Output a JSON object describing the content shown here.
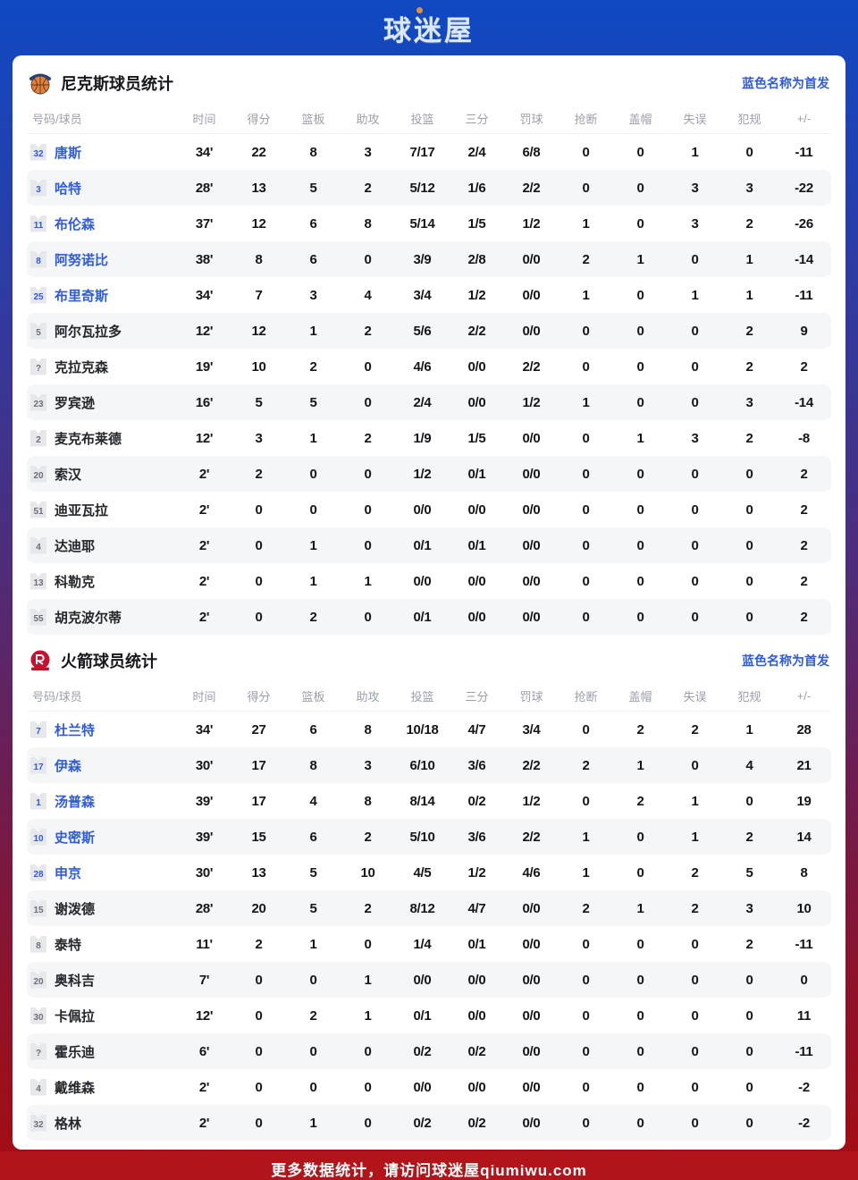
{
  "logo": {
    "text": "球迷屋"
  },
  "legend": "蓝色名称为首发",
  "columns": [
    "号码/球员",
    "时间",
    "得分",
    "篮板",
    "助攻",
    "投篮",
    "三分",
    "罚球",
    "抢断",
    "盖帽",
    "失误",
    "犯规",
    "+/-"
  ],
  "teams": [
    {
      "title": "尼克斯球员统计",
      "icon": "knicks-basketball",
      "players": [
        {
          "num": "32",
          "name": "唐斯",
          "starter": true,
          "stats": [
            "34'",
            "22",
            "8",
            "3",
            "7/17",
            "2/4",
            "6/8",
            "0",
            "0",
            "1",
            "0",
            "-11"
          ]
        },
        {
          "num": "3",
          "name": "哈特",
          "starter": true,
          "stats": [
            "28'",
            "13",
            "5",
            "2",
            "5/12",
            "1/6",
            "2/2",
            "0",
            "0",
            "3",
            "3",
            "-22"
          ]
        },
        {
          "num": "11",
          "name": "布伦森",
          "starter": true,
          "stats": [
            "37'",
            "12",
            "6",
            "8",
            "5/14",
            "1/5",
            "1/2",
            "1",
            "0",
            "3",
            "2",
            "-26"
          ]
        },
        {
          "num": "8",
          "name": "阿努诺比",
          "starter": true,
          "stats": [
            "38'",
            "8",
            "6",
            "0",
            "3/9",
            "2/8",
            "0/0",
            "2",
            "1",
            "0",
            "1",
            "-14"
          ]
        },
        {
          "num": "25",
          "name": "布里奇斯",
          "starter": true,
          "stats": [
            "34'",
            "7",
            "3",
            "4",
            "3/4",
            "1/2",
            "0/0",
            "1",
            "0",
            "1",
            "1",
            "-11"
          ]
        },
        {
          "num": "5",
          "name": "阿尔瓦拉多",
          "starter": false,
          "stats": [
            "12'",
            "12",
            "1",
            "2",
            "5/6",
            "2/2",
            "0/0",
            "0",
            "0",
            "0",
            "2",
            "9"
          ]
        },
        {
          "num": "?",
          "name": "克拉克森",
          "starter": false,
          "stats": [
            "19'",
            "10",
            "2",
            "0",
            "4/6",
            "0/0",
            "2/2",
            "0",
            "0",
            "0",
            "2",
            "2"
          ]
        },
        {
          "num": "23",
          "name": "罗宾逊",
          "starter": false,
          "stats": [
            "16'",
            "5",
            "5",
            "0",
            "2/4",
            "0/0",
            "1/2",
            "1",
            "0",
            "0",
            "3",
            "-14"
          ]
        },
        {
          "num": "2",
          "name": "麦克布莱德",
          "starter": false,
          "stats": [
            "12'",
            "3",
            "1",
            "2",
            "1/9",
            "1/5",
            "0/0",
            "0",
            "1",
            "3",
            "2",
            "-8"
          ]
        },
        {
          "num": "20",
          "name": "索汉",
          "starter": false,
          "stats": [
            "2'",
            "2",
            "0",
            "0",
            "1/2",
            "0/1",
            "0/0",
            "0",
            "0",
            "0",
            "0",
            "2"
          ]
        },
        {
          "num": "51",
          "name": "迪亚瓦拉",
          "starter": false,
          "stats": [
            "2'",
            "0",
            "0",
            "0",
            "0/0",
            "0/0",
            "0/0",
            "0",
            "0",
            "0",
            "0",
            "2"
          ]
        },
        {
          "num": "4",
          "name": "达迪耶",
          "starter": false,
          "stats": [
            "2'",
            "0",
            "1",
            "0",
            "0/1",
            "0/1",
            "0/0",
            "0",
            "0",
            "0",
            "0",
            "2"
          ]
        },
        {
          "num": "13",
          "name": "科勒克",
          "starter": false,
          "stats": [
            "2'",
            "0",
            "1",
            "1",
            "0/0",
            "0/0",
            "0/0",
            "0",
            "0",
            "0",
            "0",
            "2"
          ]
        },
        {
          "num": "55",
          "name": "胡克波尔蒂",
          "starter": false,
          "stats": [
            "2'",
            "0",
            "2",
            "0",
            "0/1",
            "0/0",
            "0/0",
            "0",
            "0",
            "0",
            "0",
            "2"
          ]
        }
      ]
    },
    {
      "title": "火箭球员统计",
      "icon": "rockets-ball",
      "players": [
        {
          "num": "7",
          "name": "杜兰特",
          "starter": true,
          "stats": [
            "34'",
            "27",
            "6",
            "8",
            "10/18",
            "4/7",
            "3/4",
            "0",
            "2",
            "2",
            "1",
            "28"
          ]
        },
        {
          "num": "17",
          "name": "伊森",
          "starter": true,
          "stats": [
            "30'",
            "17",
            "8",
            "3",
            "6/10",
            "3/6",
            "2/2",
            "2",
            "1",
            "0",
            "4",
            "21"
          ]
        },
        {
          "num": "1",
          "name": "汤普森",
          "starter": true,
          "stats": [
            "39'",
            "17",
            "4",
            "8",
            "8/14",
            "0/2",
            "1/2",
            "0",
            "2",
            "1",
            "0",
            "19"
          ]
        },
        {
          "num": "10",
          "name": "史密斯",
          "starter": true,
          "stats": [
            "39'",
            "15",
            "6",
            "2",
            "5/10",
            "3/6",
            "2/2",
            "1",
            "0",
            "1",
            "2",
            "14"
          ]
        },
        {
          "num": "28",
          "name": "申京",
          "starter": true,
          "stats": [
            "30'",
            "13",
            "5",
            "10",
            "4/5",
            "1/2",
            "4/6",
            "1",
            "0",
            "2",
            "5",
            "8"
          ]
        },
        {
          "num": "15",
          "name": "谢泼德",
          "starter": false,
          "stats": [
            "28'",
            "20",
            "5",
            "2",
            "8/12",
            "4/7",
            "0/0",
            "2",
            "1",
            "2",
            "3",
            "10"
          ]
        },
        {
          "num": "8",
          "name": "泰特",
          "starter": false,
          "stats": [
            "11'",
            "2",
            "1",
            "0",
            "1/4",
            "0/1",
            "0/0",
            "0",
            "0",
            "0",
            "2",
            "-11"
          ]
        },
        {
          "num": "20",
          "name": "奥科吉",
          "starter": false,
          "stats": [
            "7'",
            "0",
            "0",
            "1",
            "0/0",
            "0/0",
            "0/0",
            "0",
            "0",
            "0",
            "0",
            "0"
          ]
        },
        {
          "num": "30",
          "name": "卡佩拉",
          "starter": false,
          "stats": [
            "12'",
            "0",
            "2",
            "1",
            "0/1",
            "0/0",
            "0/0",
            "0",
            "0",
            "0",
            "0",
            "11"
          ]
        },
        {
          "num": "?",
          "name": "霍乐迪",
          "starter": false,
          "stats": [
            "6'",
            "0",
            "0",
            "0",
            "0/2",
            "0/2",
            "0/0",
            "0",
            "0",
            "0",
            "0",
            "-11"
          ]
        },
        {
          "num": "4",
          "name": "戴维森",
          "starter": false,
          "stats": [
            "2'",
            "0",
            "0",
            "0",
            "0/0",
            "0/0",
            "0/0",
            "0",
            "0",
            "0",
            "0",
            "-2"
          ]
        },
        {
          "num": "32",
          "name": "格林",
          "starter": false,
          "stats": [
            "2'",
            "0",
            "1",
            "0",
            "0/2",
            "0/2",
            "0/0",
            "0",
            "0",
            "0",
            "0",
            "-2"
          ]
        }
      ]
    }
  ],
  "footer": {
    "text": "更多数据统计，请访问球迷屋qiumiwu.com"
  },
  "colors": {
    "accent_blue": "#2e5be0",
    "footer_red": "#b2141a",
    "gradient_top": "#0f49c3",
    "gradient_bottom": "#a60d11",
    "stripe": "#f5f6f8"
  }
}
